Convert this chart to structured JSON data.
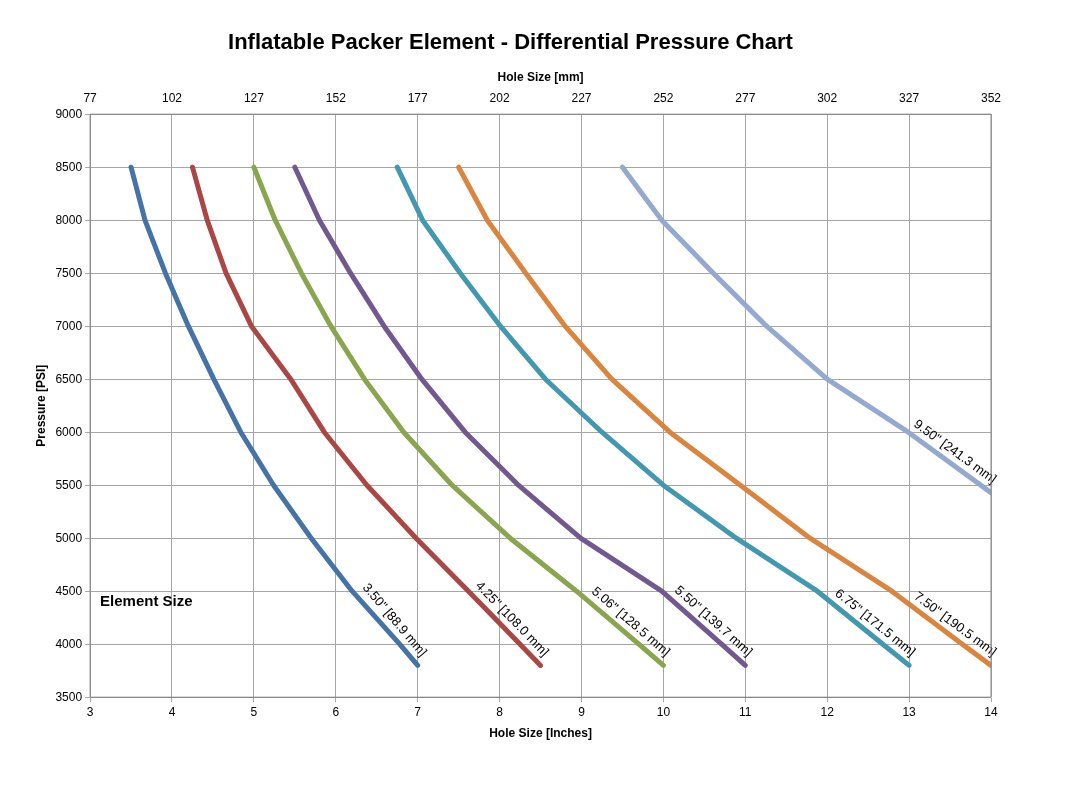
{
  "chart_data": {
    "type": "line",
    "title": "Inflatable Packer Element - Differential Pressure Chart",
    "xlabel": "Hole Size [Inches]",
    "x2label": "Hole Size [mm]",
    "ylabel": "Pressure [PSI]",
    "legend_title": "Element Size",
    "xlim": [
      3,
      14
    ],
    "xticks": [
      3,
      4,
      5,
      6,
      7,
      8,
      9,
      10,
      11,
      12,
      13,
      14
    ],
    "x2lim": [
      77,
      352
    ],
    "x2ticks": [
      77,
      102,
      127,
      152,
      177,
      202,
      227,
      252,
      277,
      302,
      327,
      352
    ],
    "ylim": [
      3500,
      9000
    ],
    "yticks": [
      3500,
      4000,
      4500,
      5000,
      5500,
      6000,
      6500,
      7000,
      7500,
      8000,
      8500,
      9000
    ],
    "grid": true,
    "legend": false,
    "marker": "none",
    "line_style": "solid",
    "series": [
      {
        "name": "3.50\" [88.9 mm]",
        "color": "#4572a7",
        "x": [
          3.5,
          3.67,
          3.92,
          4.2,
          4.51,
          4.84,
          5.24,
          5.7,
          6.2,
          6.78,
          7
        ],
        "values": [
          8500,
          8000,
          7500,
          7000,
          6500,
          6000,
          5500,
          5000,
          4500,
          4000,
          3800
        ]
      },
      {
        "name": "4.25\" [108.0 mm]",
        "color": "#aa4643",
        "x": [
          4.25,
          4.43,
          4.66,
          4.97,
          5.45,
          5.86,
          6.38,
          6.98,
          7.62,
          8.25,
          8.5
        ],
        "values": [
          8500,
          8000,
          7500,
          7000,
          6500,
          6000,
          5500,
          5000,
          4500,
          4000,
          3800
        ]
      },
      {
        "name": "5.06\" [128.5 mm]",
        "color": "#89a54e",
        "x": [
          5,
          5.26,
          5.58,
          5.94,
          6.35,
          6.83,
          7.42,
          8.13,
          8.94,
          9.7,
          10
        ],
        "values": [
          8500,
          8000,
          7500,
          7000,
          6500,
          6000,
          5500,
          5000,
          4500,
          4000,
          3800
        ]
      },
      {
        "name": "5.50\" [139.7 mm]",
        "color": "#71588f",
        "x": [
          5.5,
          5.8,
          6.18,
          6.59,
          7.05,
          7.58,
          8.23,
          8.99,
          9.98,
          10.71,
          11
        ],
        "values": [
          8500,
          8000,
          7500,
          7000,
          6500,
          6000,
          5500,
          5000,
          4500,
          4000,
          3800
        ]
      },
      {
        "name": "6.75\" [171.5 mm]",
        "color": "#4198af",
        "x": [
          6.75,
          7.06,
          7.52,
          8.01,
          8.56,
          9.25,
          10.0,
          10.89,
          11.88,
          12.68,
          13
        ],
        "values": [
          8500,
          8000,
          7500,
          7000,
          6500,
          6000,
          5500,
          5000,
          4500,
          4000,
          3800
        ]
      },
      {
        "name": "7.50\" [190.5 mm]",
        "color": "#db843d",
        "x": [
          7.5,
          7.85,
          8.32,
          8.8,
          9.37,
          10.08,
          10.94,
          11.79,
          12.79,
          13.65,
          14
        ],
        "values": [
          8500,
          8000,
          7500,
          7000,
          6500,
          6000,
          5500,
          5000,
          4500,
          4000,
          3800
        ]
      },
      {
        "name": "9.50\" [241.3 mm]",
        "color": "#93a9cf",
        "x": [
          9.5,
          9.98,
          10.61,
          11.26,
          12.0,
          12.99,
          14
        ],
        "values": [
          8500,
          8000,
          7500,
          7000,
          6500,
          6000,
          5430
        ]
      }
    ]
  }
}
